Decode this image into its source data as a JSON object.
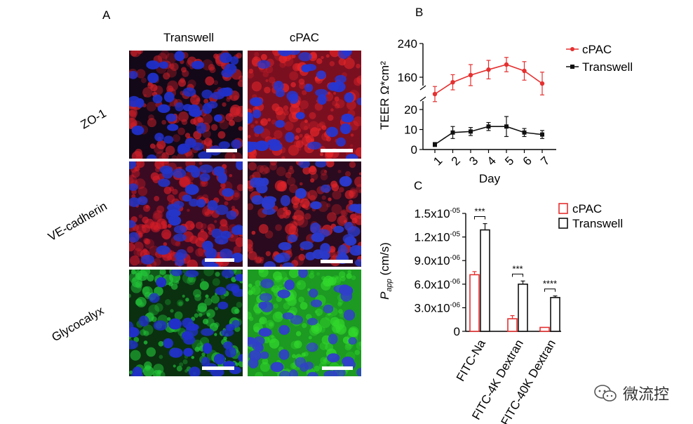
{
  "panelA": {
    "letter": "A",
    "columns": [
      "Transwell",
      "cPAC"
    ],
    "rows": [
      "ZO-1",
      "VE-cadherin",
      "Glycocalyx"
    ]
  },
  "panelB": {
    "letter": "B"
  },
  "panelC": {
    "letter": "C"
  },
  "watermark": {
    "text": "微流控"
  },
  "colors": {
    "cpac": "#e53030",
    "transwell": "#111111",
    "zo1_red": "#e8262a",
    "nuclei_blue": "#2233cc",
    "glyco_green": "#2ccf2a"
  },
  "chart_data": [
    {
      "type": "line",
      "title": "",
      "xlabel": "Day",
      "ylabel": "TEER Ω*cm²",
      "x": [
        1,
        2,
        3,
        4,
        5,
        6,
        7
      ],
      "xtick_labels": [
        "1",
        "2",
        "3",
        "4",
        "5",
        "6",
        "7"
      ],
      "y_broken_axis": true,
      "upper_ytick_labels": [
        "160",
        "240"
      ],
      "lower_ytick_labels": [
        "0",
        "10",
        "20"
      ],
      "series": [
        {
          "name": "cPAC",
          "values": [
            120,
            148,
            165,
            178,
            190,
            175,
            145
          ],
          "errors": [
            18,
            18,
            25,
            22,
            17,
            22,
            27
          ]
        },
        {
          "name": "Transwell",
          "values": [
            2.5,
            8.5,
            9,
            11.5,
            11.5,
            8.5,
            7.5
          ],
          "errors": [
            1,
            3,
            2,
            2,
            5,
            2,
            2
          ]
        }
      ],
      "legend": [
        "cPAC",
        "Transwell"
      ]
    },
    {
      "type": "bar",
      "title": "",
      "xlabel": "",
      "ylabel": "P_app (cm/s)",
      "ylabel_main": "P",
      "ylabel_sub": "app",
      "ylabel_rest": " (cm/s)",
      "ylim": [
        0,
        1.5e-05
      ],
      "yticks": [
        0,
        3e-06,
        6e-06,
        9e-06,
        1.2e-05,
        1.5e-05
      ],
      "ytick_labels": [
        {
          "main": "0",
          "exp": ""
        },
        {
          "main": "3.0x10",
          "exp": "-06"
        },
        {
          "main": "6.0x10",
          "exp": "-06"
        },
        {
          "main": "9.0x10",
          "exp": "-06"
        },
        {
          "main": "1.2x10",
          "exp": "-05"
        },
        {
          "main": "1.5x10",
          "exp": "-05"
        }
      ],
      "categories": [
        "FITC-Na",
        "FITC-4K Dextran",
        "FITC-40K Dextran"
      ],
      "series": [
        {
          "name": "cPAC",
          "values": [
            7.2e-06,
            1.6e-06,
            5e-07
          ],
          "errors": [
            4e-07,
            4e-07,
            0
          ]
        },
        {
          "name": "Transwell",
          "values": [
            1.29e-05,
            6e-06,
            4.3e-06
          ],
          "errors": [
            8e-07,
            4e-07,
            2e-07
          ]
        }
      ],
      "significance": [
        "***",
        "***",
        "****"
      ],
      "legend": [
        "cPAC",
        "Transwell"
      ]
    }
  ]
}
